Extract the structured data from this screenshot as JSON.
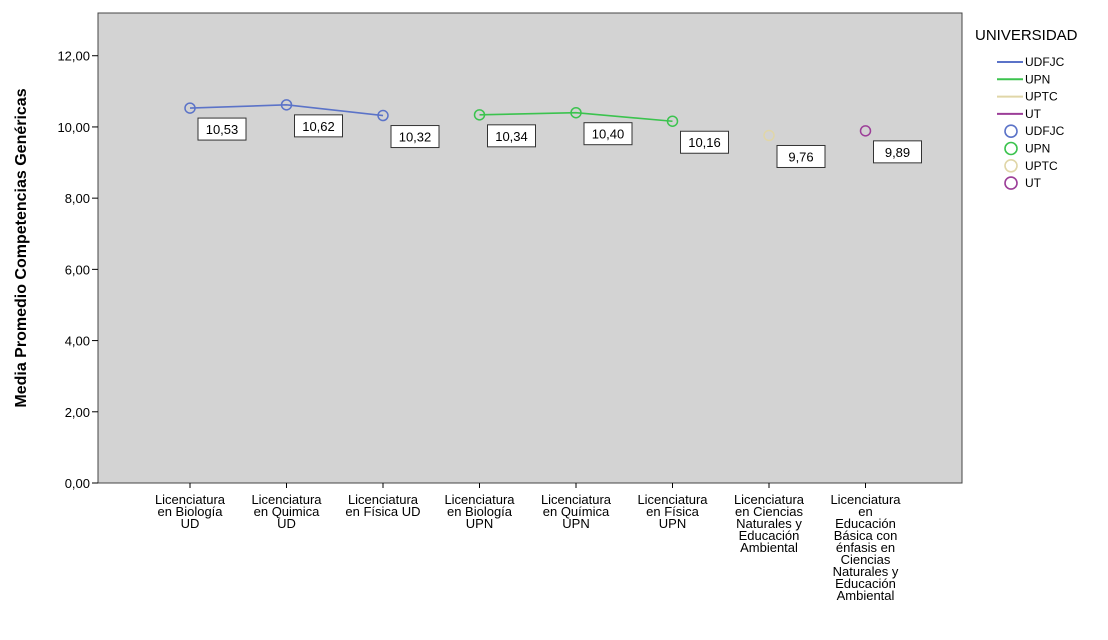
{
  "chart_data": {
    "type": "line",
    "ylabel": "Media Promedio Competencias Genéricas",
    "xlabel": "",
    "ylim": [
      0,
      13.2
    ],
    "yticks": [
      "0,00",
      "2,00",
      "4,00",
      "6,00",
      "8,00",
      "10,00",
      "12,00"
    ],
    "ytick_values": [
      0,
      2,
      4,
      6,
      8,
      10,
      12
    ],
    "grid": false,
    "legend_position": "right",
    "legend_title": "UNIVERSIDAD",
    "categories": [
      [
        "Licenciatura",
        "en Biología",
        "UD"
      ],
      [
        "Licenciatura",
        "en Quimica",
        "UD"
      ],
      [
        "Licenciatura",
        "en Física UD"
      ],
      [
        "Licenciatura",
        "en Biología",
        "UPN"
      ],
      [
        "Licenciatura",
        "en Química",
        "UPN"
      ],
      [
        "Licenciatura",
        "en Física",
        "UPN"
      ],
      [
        "Licenciatura",
        "en Ciencias",
        "Naturales y",
        "Educación",
        "Ambiental"
      ],
      [
        "Licenciatura",
        "en",
        "Educación",
        "Básica con",
        "énfasis en",
        "Ciencias",
        "Naturales y",
        "Educación",
        "Ambiental"
      ]
    ],
    "series": [
      {
        "name": "UDFJC",
        "color": "#5B73C8",
        "points": [
          [
            0,
            10.53,
            "10,53"
          ],
          [
            1,
            10.62,
            "10,62"
          ],
          [
            2,
            10.32,
            "10,32"
          ]
        ]
      },
      {
        "name": "UPN",
        "color": "#3BC34E",
        "points": [
          [
            3,
            10.34,
            "10,34"
          ],
          [
            4,
            10.4,
            "10,40"
          ],
          [
            5,
            10.16,
            "10,16"
          ]
        ]
      },
      {
        "name": "UPTC",
        "color": "#E0D6A8",
        "points": [
          [
            6,
            9.76,
            "9,76"
          ]
        ]
      },
      {
        "name": "UT",
        "color": "#9C3E98",
        "points": [
          [
            7,
            9.89,
            "9,89"
          ]
        ]
      }
    ],
    "legend_entries": [
      {
        "label": "UDFJC",
        "kind": "line",
        "color": "#5B73C8"
      },
      {
        "label": "UPN",
        "kind": "line",
        "color": "#3BC34E"
      },
      {
        "label": "UPTC",
        "kind": "line",
        "color": "#E0D6A8"
      },
      {
        "label": "UT",
        "kind": "line",
        "color": "#9C3E98"
      },
      {
        "label": "UDFJC",
        "kind": "marker",
        "color": "#5B73C8"
      },
      {
        "label": "UPN",
        "kind": "marker",
        "color": "#3BC34E"
      },
      {
        "label": "UPTC",
        "kind": "marker",
        "color": "#E0D6A8"
      },
      {
        "label": "UT",
        "kind": "marker",
        "color": "#9C3E98"
      }
    ],
    "plot_background": "#D3D3D3"
  }
}
